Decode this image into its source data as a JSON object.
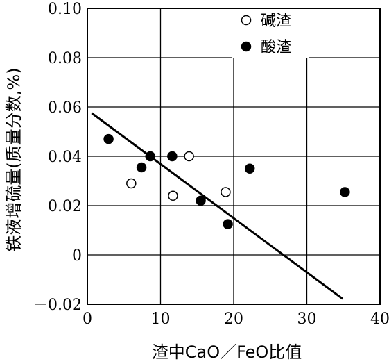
{
  "chart_data": {
    "type": "scatter",
    "xlabel": "渣中CaO／FeO比值",
    "ylabel": "铁液增硫量(质量分数,%)",
    "xlim": [
      0,
      40
    ],
    "ylim": [
      -0.02,
      0.1
    ],
    "x_ticks": [
      "0",
      "10",
      "20",
      "30",
      "40"
    ],
    "y_ticks": [
      "0.10",
      "0.08",
      "0.06",
      "0.04",
      "0.02",
      "0",
      "－0.02"
    ],
    "y_tick_values": [
      0.1,
      0.08,
      0.06,
      0.04,
      0.02,
      0,
      -0.02
    ],
    "x_tick_values": [
      0,
      10,
      20,
      30,
      40
    ],
    "grid": true,
    "legend_position": "top-right",
    "series": [
      {
        "name": "碱渣",
        "marker": "open-circle",
        "points": [
          {
            "x": 6.0,
            "y": 0.029
          },
          {
            "x": 11.7,
            "y": 0.024
          },
          {
            "x": 13.9,
            "y": 0.04
          },
          {
            "x": 18.9,
            "y": 0.0255
          }
        ]
      },
      {
        "name": "酸渣",
        "marker": "filled-circle",
        "points": [
          {
            "x": 2.9,
            "y": 0.047
          },
          {
            "x": 7.4,
            "y": 0.0355
          },
          {
            "x": 8.6,
            "y": 0.04
          },
          {
            "x": 11.6,
            "y": 0.04
          },
          {
            "x": 15.5,
            "y": 0.022
          },
          {
            "x": 19.2,
            "y": 0.0125
          },
          {
            "x": 22.2,
            "y": 0.035
          },
          {
            "x": 35.2,
            "y": 0.0255
          }
        ]
      }
    ],
    "trend_line": {
      "x": [
        0.6,
        34.9
      ],
      "y": [
        0.0575,
        -0.0178
      ]
    },
    "colors": {
      "axis": "#000000",
      "grid": "#000000",
      "marker": "#000000"
    }
  }
}
